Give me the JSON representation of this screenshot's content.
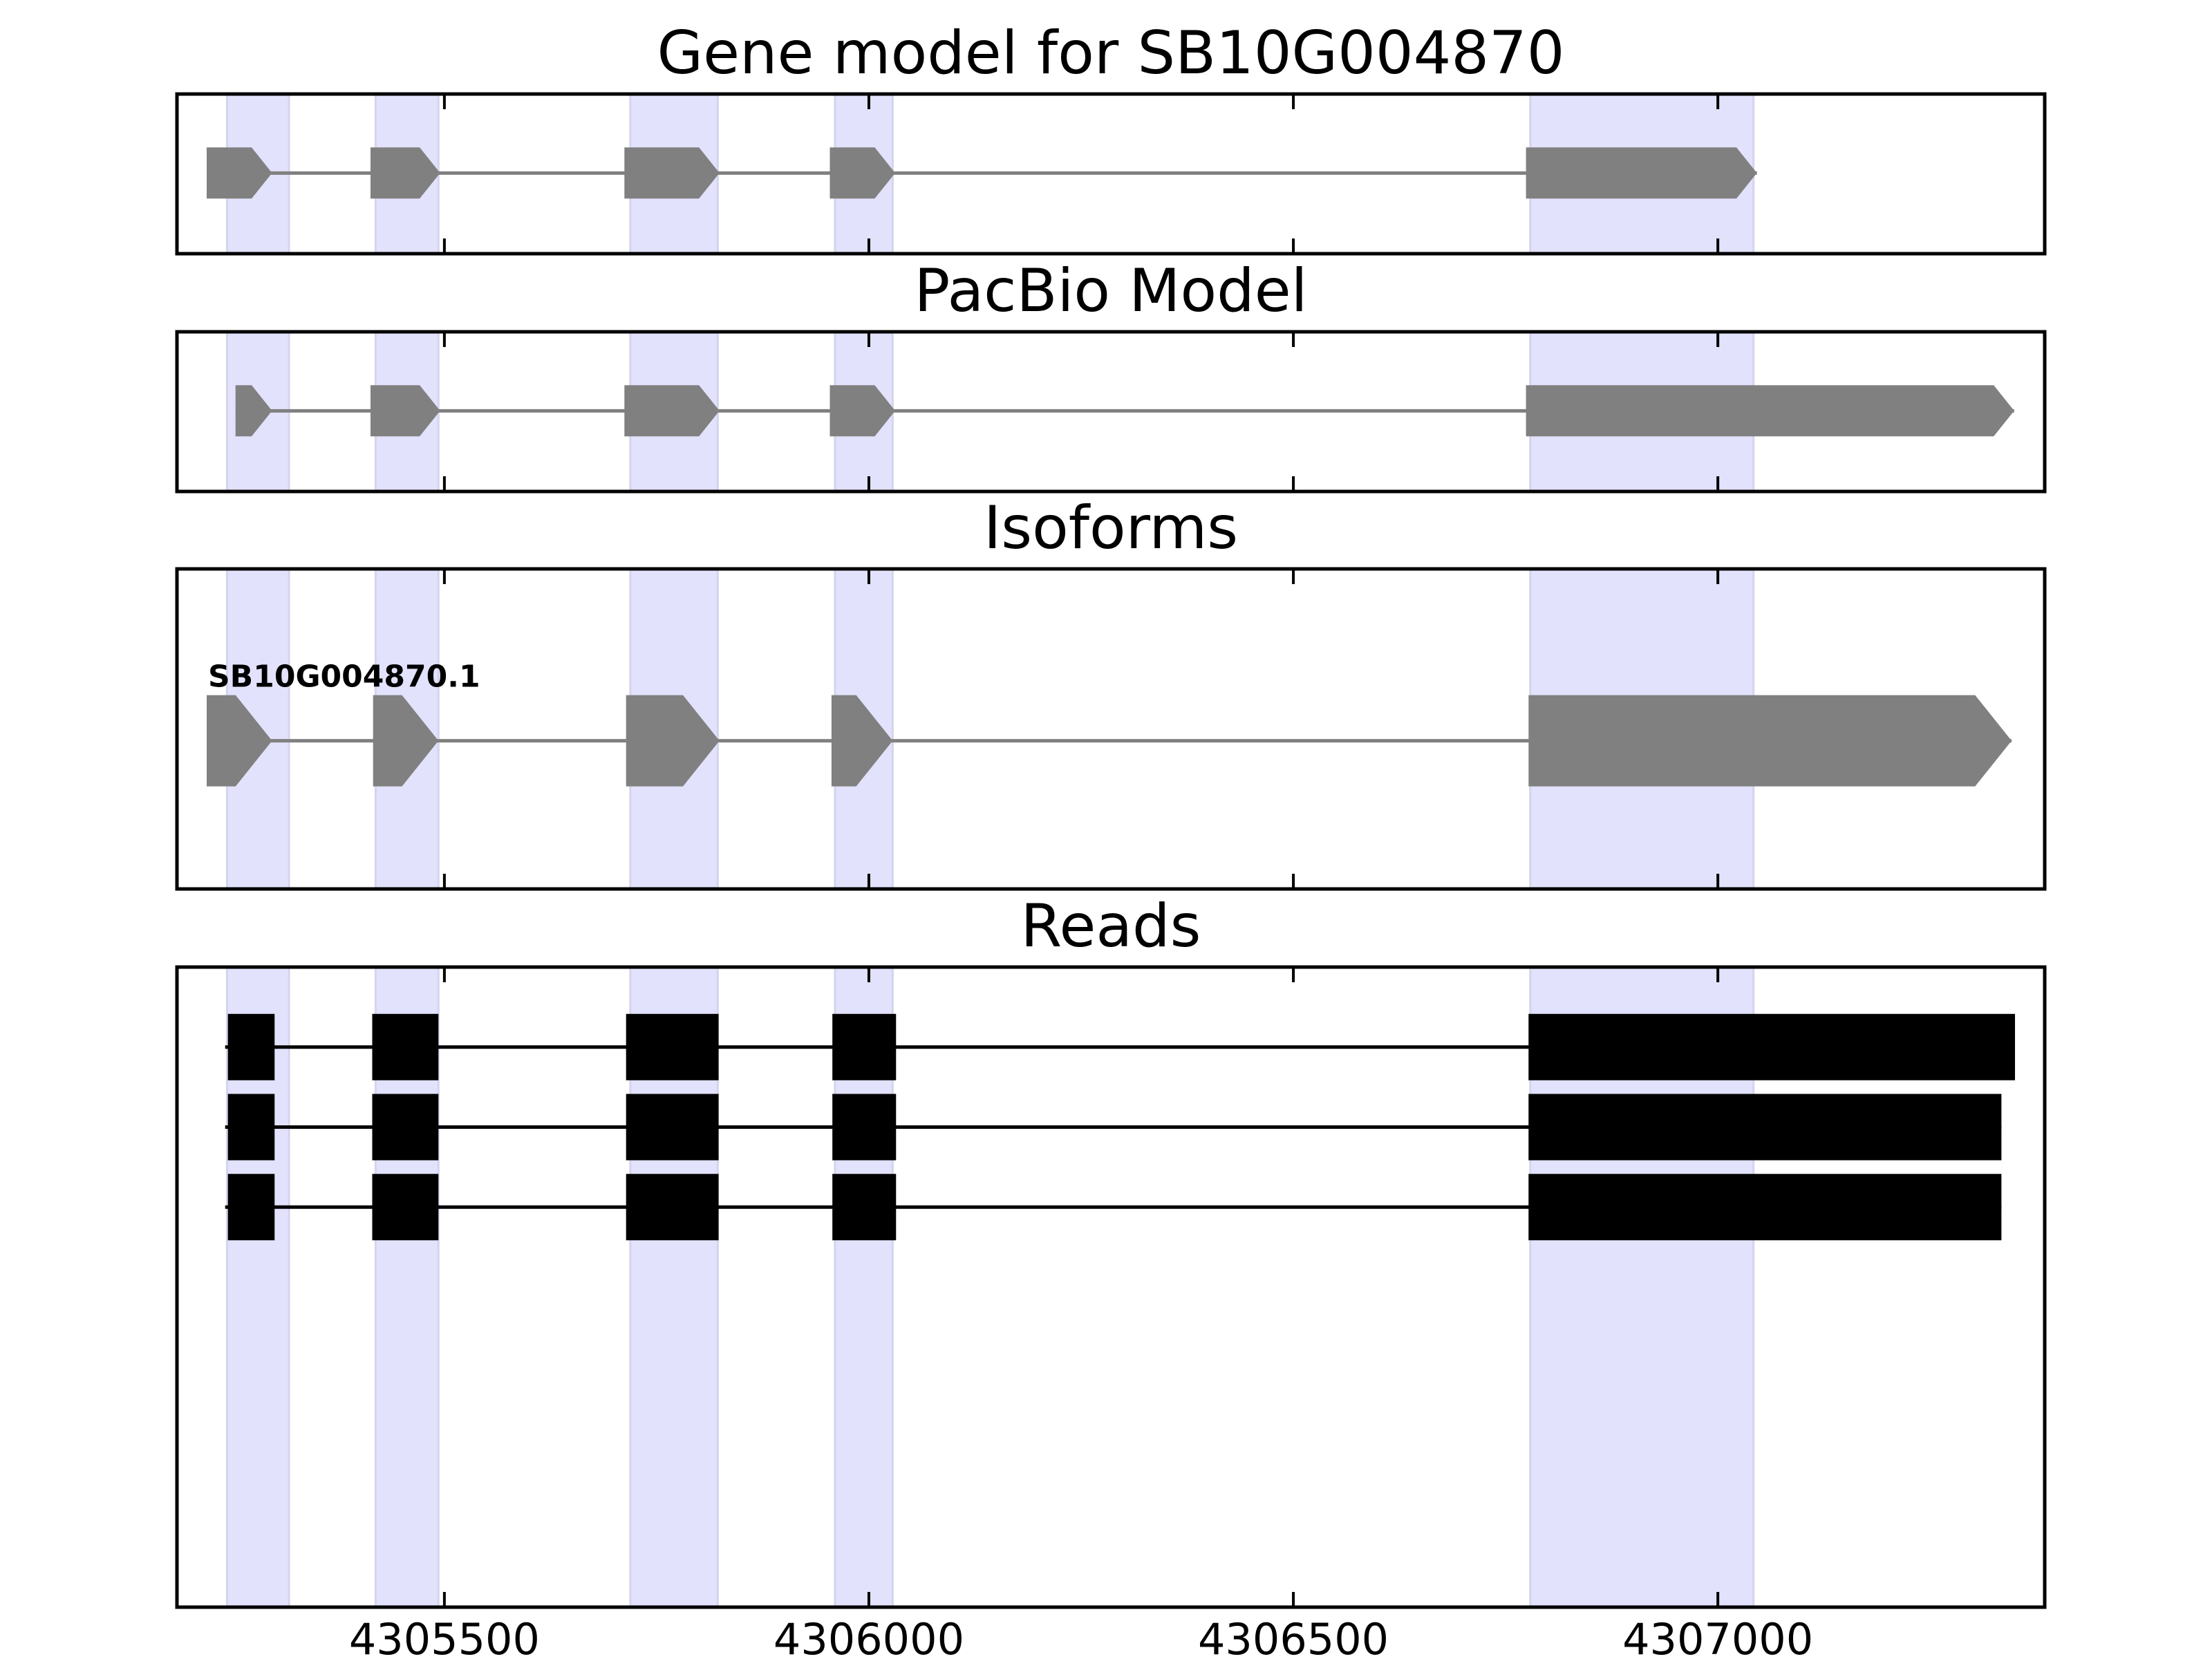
{
  "chart_data": {
    "type": "gene-track",
    "xlim": [
      4305185,
      4307385
    ],
    "xticks": [
      4305500,
      4306000,
      4306500,
      4307000
    ],
    "xtick_labels": [
      "4305500",
      "4306000",
      "4306500",
      "4307000"
    ],
    "colors": {
      "highlight": "#e2e2fc",
      "feature": "#808080",
      "read": "#000000",
      "frame": "#000000"
    },
    "highlight_regions": [
      [
        4305244,
        4305317
      ],
      [
        4305419,
        4305493
      ],
      [
        4305719,
        4305822
      ],
      [
        4305960,
        4306028
      ],
      [
        4306779,
        4307042
      ]
    ],
    "panels": [
      {
        "title": "Gene model for SB10G004870",
        "kind": "model",
        "exons": [
          [
            4305220,
            4305297
          ],
          [
            4305413,
            4305495
          ],
          [
            4305712,
            4305824
          ],
          [
            4305954,
            4306031
          ],
          [
            4306774,
            4307046
          ]
        ]
      },
      {
        "title": "PacBio Model",
        "kind": "model",
        "exons": [
          [
            4305254,
            4305297
          ],
          [
            4305413,
            4305495
          ],
          [
            4305712,
            4305824
          ],
          [
            4305954,
            4306031
          ],
          [
            4306774,
            4307349
          ]
        ]
      },
      {
        "title": "Isoforms",
        "kind": "isoforms",
        "isoforms": [
          {
            "label": "SB10G004870.1",
            "exons": [
              [
                4305220,
                4305297
              ],
              [
                4305416,
                4305493
              ],
              [
                4305714,
                4305824
              ],
              [
                4305956,
                4306028
              ],
              [
                4306777,
                4307346
              ]
            ]
          }
        ]
      },
      {
        "title": "Reads",
        "kind": "reads",
        "reads": [
          [
            [
              4305245,
              4305300
            ],
            [
              4305415,
              4305493
            ],
            [
              4305714,
              4305823
            ],
            [
              4305957,
              4306032
            ],
            [
              4306777,
              4307350
            ]
          ],
          [
            [
              4305245,
              4305300
            ],
            [
              4305415,
              4305493
            ],
            [
              4305714,
              4305823
            ],
            [
              4305957,
              4306032
            ],
            [
              4306777,
              4307334
            ]
          ],
          [
            [
              4305245,
              4305300
            ],
            [
              4305415,
              4305493
            ],
            [
              4305714,
              4305823
            ],
            [
              4305957,
              4306032
            ],
            [
              4306777,
              4307334
            ]
          ]
        ]
      }
    ]
  }
}
